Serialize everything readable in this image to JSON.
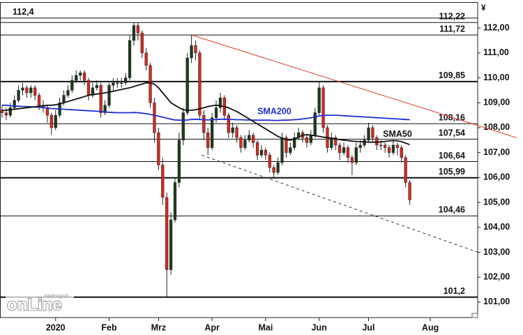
{
  "chart_data": {
    "type": "candlestick",
    "unit": "¥",
    "ylim": [
      100.38,
      113.04
    ],
    "yticks": [
      {
        "value": 101,
        "label": "101,00"
      },
      {
        "value": 102,
        "label": "102,00"
      },
      {
        "value": 103,
        "label": "103,00"
      },
      {
        "value": 104,
        "label": "104,00"
      },
      {
        "value": 105,
        "label": "105,00"
      },
      {
        "value": 106,
        "label": "106,00"
      },
      {
        "value": 107,
        "label": "107,00"
      },
      {
        "value": 108,
        "label": "108,00"
      },
      {
        "value": 109,
        "label": "109,00"
      },
      {
        "value": 110,
        "label": "110,00"
      },
      {
        "value": 111,
        "label": "111,00"
      },
      {
        "value": 112,
        "label": "112,00"
      }
    ],
    "categories": [
      null,
      null,
      null,
      null,
      null,
      null,
      null,
      null,
      null,
      null,
      null,
      null,
      null,
      "2020",
      null,
      null,
      null,
      null,
      null,
      null,
      null,
      null,
      null,
      null,
      null,
      null,
      "Feb",
      null,
      null,
      null,
      null,
      null,
      null,
      null,
      null,
      null,
      null,
      null,
      "Mrz",
      null,
      null,
      null,
      null,
      null,
      null,
      null,
      null,
      null,
      null,
      null,
      null,
      "Apr",
      null,
      null,
      null,
      null,
      null,
      null,
      null,
      null,
      null,
      null,
      null,
      null,
      "Mai",
      null,
      null,
      null,
      null,
      null,
      null,
      null,
      null,
      null,
      null,
      null,
      null,
      "Jun",
      null,
      null,
      null,
      null,
      null,
      null,
      null,
      null,
      null,
      null,
      null,
      "Jul",
      null,
      null,
      null,
      null,
      null,
      null,
      null,
      null,
      null,
      null,
      null,
      null,
      null,
      null,
      "Aug",
      null,
      null,
      null,
      null,
      null,
      null,
      null,
      null,
      null,
      null,
      null
    ],
    "up_color": "#1e3a1e",
    "down_color": "#d42a1e",
    "candles": [
      [
        108.7,
        108.9,
        108.4,
        108.6
      ],
      [
        108.6,
        108.8,
        108.3,
        108.5
      ],
      [
        108.5,
        109.0,
        108.4,
        108.8
      ],
      [
        108.8,
        109.3,
        108.7,
        109.1
      ],
      [
        109.1,
        109.7,
        109.0,
        109.5
      ],
      [
        109.5,
        109.8,
        109.3,
        109.6
      ],
      [
        109.6,
        109.7,
        109.2,
        109.4
      ],
      [
        109.4,
        109.7,
        109.2,
        109.6
      ],
      [
        109.6,
        109.7,
        109.1,
        109.3
      ],
      [
        109.3,
        109.4,
        108.7,
        108.9
      ],
      [
        108.9,
        109.1,
        108.6,
        108.8
      ],
      [
        108.8,
        108.9,
        108.2,
        108.5
      ],
      [
        108.5,
        108.6,
        107.7,
        108.0
      ],
      [
        108.0,
        108.7,
        107.9,
        108.5
      ],
      [
        108.5,
        109.2,
        108.4,
        109.0
      ],
      [
        109.0,
        109.5,
        108.9,
        109.3
      ],
      [
        109.3,
        109.7,
        109.2,
        109.5
      ],
      [
        109.5,
        110.1,
        109.4,
        109.9
      ],
      [
        109.9,
        110.3,
        109.8,
        110.1
      ],
      [
        110.1,
        110.3,
        109.9,
        110.2
      ],
      [
        110.2,
        110.3,
        109.7,
        109.9
      ],
      [
        109.9,
        110.0,
        109.1,
        109.3
      ],
      [
        109.3,
        109.8,
        109.2,
        109.6
      ],
      [
        109.6,
        109.9,
        109.5,
        109.7
      ],
      [
        109.7,
        109.8,
        108.4,
        108.6
      ],
      [
        108.6,
        109.1,
        108.5,
        108.9
      ],
      [
        108.9,
        109.8,
        108.8,
        109.7
      ],
      [
        109.7,
        110.0,
        109.5,
        109.8
      ],
      [
        109.8,
        110.0,
        109.6,
        109.8
      ],
      [
        109.8,
        110.0,
        109.6,
        109.8
      ],
      [
        109.8,
        110.2,
        109.7,
        110.0
      ],
      [
        110.0,
        111.7,
        109.9,
        111.5
      ],
      [
        111.5,
        112.22,
        111.3,
        112.1
      ],
      [
        112.1,
        112.2,
        111.5,
        111.8
      ],
      [
        111.8,
        111.9,
        110.8,
        111.0
      ],
      [
        111.0,
        111.2,
        110.3,
        110.5
      ],
      [
        110.5,
        110.6,
        108.8,
        109.0
      ],
      [
        109.0,
        109.2,
        107.4,
        107.8
      ],
      [
        107.8,
        108.0,
        106.3,
        106.5
      ],
      [
        106.5,
        106.8,
        104.9,
        105.2
      ],
      [
        105.2,
        105.4,
        101.2,
        102.3
      ],
      [
        102.3,
        104.6,
        102.1,
        104.3
      ],
      [
        104.3,
        106.0,
        104.2,
        105.8
      ],
      [
        105.8,
        107.8,
        105.6,
        107.5
      ],
      [
        107.5,
        108.8,
        107.3,
        108.6
      ],
      [
        108.6,
        111.0,
        108.5,
        110.8
      ],
      [
        110.8,
        111.72,
        110.6,
        111.3
      ],
      [
        111.3,
        111.5,
        110.7,
        111.0
      ],
      [
        111.0,
        111.1,
        108.3,
        108.5
      ],
      [
        108.5,
        108.7,
        107.5,
        107.8
      ],
      [
        107.8,
        108.0,
        106.9,
        107.2
      ],
      [
        107.2,
        108.6,
        107.1,
        108.4
      ],
      [
        108.4,
        109.1,
        108.2,
        108.8
      ],
      [
        108.8,
        109.4,
        108.6,
        109.2
      ],
      [
        109.2,
        109.3,
        108.3,
        108.5
      ],
      [
        108.5,
        108.6,
        107.6,
        107.8
      ],
      [
        107.8,
        108.2,
        107.6,
        108.0
      ],
      [
        108.0,
        108.1,
        107.4,
        107.6
      ],
      [
        107.6,
        107.7,
        107.0,
        107.2
      ],
      [
        107.2,
        107.7,
        107.1,
        107.5
      ],
      [
        107.5,
        107.9,
        107.4,
        107.7
      ],
      [
        107.7,
        107.8,
        107.2,
        107.4
      ],
      [
        107.4,
        107.5,
        106.7,
        106.9
      ],
      [
        106.9,
        107.3,
        106.8,
        107.1
      ],
      [
        107.1,
        107.2,
        106.7,
        106.9
      ],
      [
        106.9,
        107.0,
        106.2,
        106.4
      ],
      [
        106.4,
        106.5,
        105.99,
        106.2
      ],
      [
        106.2,
        106.8,
        106.1,
        106.6
      ],
      [
        106.6,
        107.8,
        106.5,
        107.6
      ],
      [
        107.6,
        107.7,
        106.8,
        107.0
      ],
      [
        107.0,
        107.4,
        106.9,
        107.2
      ],
      [
        107.2,
        107.8,
        107.1,
        107.6
      ],
      [
        107.6,
        108.0,
        107.5,
        107.8
      ],
      [
        107.8,
        107.9,
        107.4,
        107.6
      ],
      [
        107.6,
        107.7,
        107.2,
        107.4
      ],
      [
        107.4,
        107.9,
        107.3,
        107.7
      ],
      [
        107.7,
        108.8,
        107.6,
        108.6
      ],
      [
        108.6,
        109.85,
        108.5,
        109.6
      ],
      [
        109.6,
        109.7,
        107.8,
        108.0
      ],
      [
        108.0,
        108.1,
        107.0,
        107.2
      ],
      [
        107.2,
        107.8,
        107.1,
        107.6
      ],
      [
        107.6,
        107.7,
        107.1,
        107.3
      ],
      [
        107.3,
        107.4,
        106.7,
        107.0
      ],
      [
        107.0,
        107.4,
        106.9,
        107.2
      ],
      [
        107.2,
        107.3,
        106.6,
        106.8
      ],
      [
        106.8,
        106.9,
        106.1,
        106.6
      ],
      [
        106.6,
        107.4,
        106.5,
        107.2
      ],
      [
        107.2,
        107.5,
        107.0,
        107.3
      ],
      [
        107.3,
        107.7,
        107.2,
        107.5
      ],
      [
        107.5,
        108.2,
        107.4,
        108.0
      ],
      [
        108.0,
        108.1,
        107.4,
        107.6
      ],
      [
        107.6,
        107.7,
        107.1,
        107.3
      ],
      [
        107.3,
        107.5,
        107.1,
        107.3
      ],
      [
        107.3,
        107.4,
        107.0,
        107.2
      ],
      [
        107.2,
        107.3,
        106.8,
        107.0
      ],
      [
        107.0,
        107.5,
        106.9,
        107.3
      ],
      [
        107.3,
        107.4,
        106.9,
        107.2
      ],
      [
        107.2,
        107.3,
        106.6,
        106.8
      ],
      [
        106.8,
        106.9,
        105.6,
        105.8
      ],
      [
        105.8,
        105.9,
        104.9,
        105.1
      ],
      null,
      null,
      null,
      null,
      null,
      null,
      null,
      null,
      null,
      null,
      null,
      null,
      null,
      null,
      null,
      null
    ],
    "series": [
      {
        "name": "SMA200",
        "color": "#1f2fd0",
        "values": [
          108.9,
          108.9,
          108.88,
          108.87,
          108.86,
          108.85,
          108.85,
          108.84,
          108.83,
          108.82,
          108.8,
          108.79,
          108.77,
          108.76,
          108.75,
          108.74,
          108.73,
          108.72,
          108.71,
          108.7,
          108.69,
          108.68,
          108.67,
          108.66,
          108.65,
          108.63,
          108.62,
          108.61,
          108.6,
          108.6,
          108.6,
          108.6,
          108.61,
          108.6,
          108.58,
          108.56,
          108.53,
          108.5,
          108.46,
          108.42,
          108.38,
          108.34,
          108.31,
          108.3,
          108.3,
          108.31,
          108.33,
          108.34,
          108.33,
          108.32,
          108.31,
          108.32,
          108.33,
          108.34,
          108.34,
          108.33,
          108.33,
          108.32,
          108.32,
          108.31,
          108.31,
          108.3,
          108.3,
          108.3,
          108.3,
          108.3,
          108.29,
          108.29,
          108.3,
          108.3,
          108.31,
          108.32,
          108.33,
          108.35,
          108.37,
          108.4,
          108.43,
          108.47,
          108.49,
          108.5,
          108.5,
          108.5,
          108.49,
          108.48,
          108.47,
          108.46,
          108.45,
          108.44,
          108.43,
          108.42,
          108.41,
          108.4,
          108.39,
          108.38,
          108.37,
          108.36,
          108.35,
          108.34,
          108.33,
          108.32,
          null,
          null,
          null,
          null,
          null,
          null,
          null,
          null,
          null,
          null,
          null,
          null,
          null,
          null,
          null,
          null
        ]
      },
      {
        "name": "SMA50",
        "color": "#111111",
        "values": [
          108.7,
          108.7,
          108.72,
          108.74,
          108.76,
          108.78,
          108.8,
          108.82,
          108.84,
          108.86,
          108.88,
          108.9,
          108.9,
          108.92,
          108.95,
          109.0,
          109.05,
          109.1,
          109.15,
          109.2,
          109.25,
          109.3,
          109.33,
          109.35,
          109.37,
          109.4,
          109.43,
          109.46,
          109.5,
          109.53,
          109.57,
          109.6,
          109.65,
          109.7,
          109.75,
          109.8,
          109.8,
          109.75,
          109.6,
          109.4,
          109.2,
          109.0,
          108.9,
          108.8,
          108.72,
          108.7,
          108.7,
          108.72,
          108.76,
          108.8,
          108.85,
          108.88,
          108.9,
          108.88,
          108.85,
          108.8,
          108.72,
          108.65,
          108.55,
          108.45,
          108.35,
          108.25,
          108.15,
          108.05,
          107.95,
          107.85,
          107.75,
          107.65,
          107.58,
          107.52,
          107.5,
          107.55,
          107.62,
          107.7,
          107.72,
          107.7,
          107.68,
          107.65,
          107.62,
          107.6,
          107.58,
          107.55,
          107.52,
          107.5,
          107.48,
          107.46,
          107.45,
          107.44,
          107.43,
          107.42,
          107.42,
          107.42,
          107.43,
          107.45,
          107.47,
          107.48,
          107.47,
          107.44,
          107.38,
          107.32,
          null,
          null,
          null,
          null,
          null,
          null,
          null,
          null,
          null,
          null,
          null,
          null,
          null,
          null,
          null,
          null
        ]
      }
    ],
    "levels": [
      {
        "value": 112.4,
        "label": "112,4",
        "label_side": "left"
      },
      {
        "value": 112.22,
        "label": "112,22"
      },
      {
        "value": 111.72,
        "label": "111,72"
      },
      {
        "value": 109.85,
        "label": "109,85"
      },
      {
        "value": 108.16,
        "label": "108,16"
      },
      {
        "value": 107.54,
        "label": "107,54"
      },
      {
        "value": 106.64,
        "label": "106,64"
      },
      {
        "value": 105.99,
        "label": "105,99"
      },
      {
        "value": 104.46,
        "label": "104,46"
      },
      {
        "value": 101.2,
        "label": "101,2"
      }
    ],
    "trendlines": [
      {
        "color": "#e03a2a",
        "dashed": false,
        "x": [
          46,
          124.9
        ],
        "y": [
          111.72,
          107.6
        ]
      },
      {
        "color": "#333333",
        "dashed": true,
        "x": [
          48.5,
          115.6
        ],
        "y": [
          106.9,
          103.0
        ]
      }
    ]
  },
  "logo": {
    "small": "tradesignal",
    "main": "onLine"
  }
}
